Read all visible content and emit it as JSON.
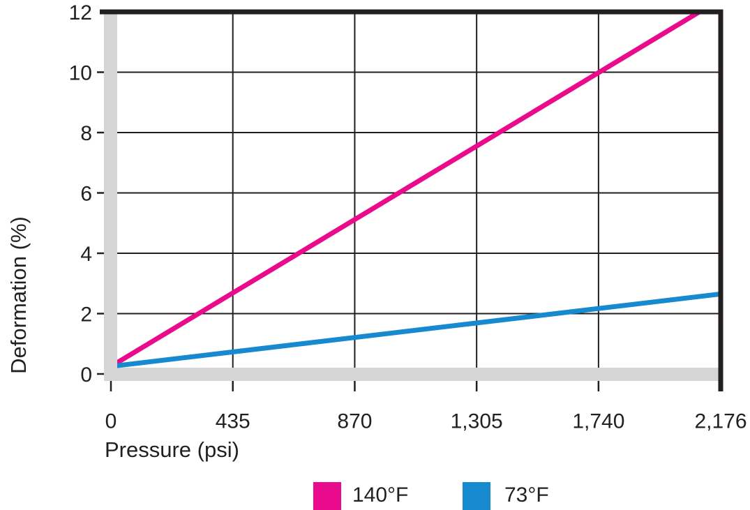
{
  "chart_data": {
    "type": "line",
    "title": "",
    "xlabel": "Pressure (psi)",
    "ylabel": "Deformation (%)",
    "xlim": [
      0,
      2176
    ],
    "ylim": [
      0,
      12
    ],
    "x_ticks": [
      0,
      435,
      870,
      1305,
      1740,
      2176
    ],
    "x_tick_labels": [
      "0",
      "435",
      "870",
      "1,305",
      "1,740",
      "2,176"
    ],
    "y_ticks": [
      0,
      2,
      4,
      6,
      8,
      10,
      12
    ],
    "y_tick_labels": [
      "0",
      "2",
      "4",
      "6",
      "8",
      "10",
      "12"
    ],
    "grid": true,
    "legend_position": "bottom",
    "colors": {
      "axis": "#231f20",
      "grid": "#231f20",
      "axis_band": "#d5d5d6",
      "background": "#ffffff"
    },
    "series": [
      {
        "name": "140°F",
        "color": "#ea0b8c",
        "points": [
          [
            0,
            0.25
          ],
          [
            2100,
            12
          ]
        ]
      },
      {
        "name": "73°F",
        "color": "#1789ce",
        "points": [
          [
            0,
            0.25
          ],
          [
            2176,
            2.65
          ]
        ]
      }
    ]
  }
}
